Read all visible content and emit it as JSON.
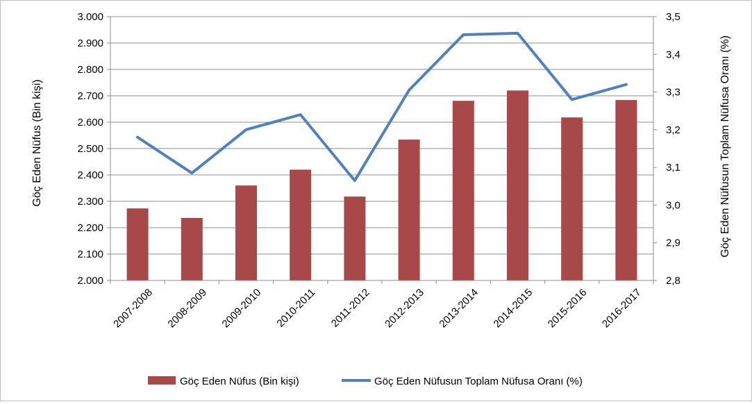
{
  "chart_data": {
    "type": "bar",
    "categories": [
      "2007-2008",
      "2008-2009",
      "2009-2010",
      "2010-2011",
      "2011-2012",
      "2012-2013",
      "2013-2014",
      "2014-2015",
      "2015-2016",
      "2016-2017"
    ],
    "series": [
      {
        "name": "Göç Eden Nüfus (Bin kişi)",
        "type": "bar",
        "axis": "left",
        "color": "#a84848",
        "values": [
          2273,
          2237,
          2360,
          2420,
          2318,
          2534,
          2681,
          2720,
          2618,
          2684
        ]
      },
      {
        "name": "Göç Eden Nüfusun Toplam Nüfusa  Oranı (%)",
        "type": "line",
        "axis": "right",
        "color": "#4f81bd",
        "values": [
          3.18,
          3.085,
          3.2,
          3.24,
          3.065,
          3.305,
          3.452,
          3.456,
          3.28,
          3.32
        ]
      }
    ],
    "y_left": {
      "label": "Göç Eden Nüfus (Bin kişi)",
      "ylim": [
        2000,
        3000
      ],
      "ticks": [
        2000,
        2100,
        2200,
        2300,
        2400,
        2500,
        2600,
        2700,
        2800,
        2900,
        3000
      ],
      "tick_labels": [
        "2.000",
        "2.100",
        "2.200",
        "2.300",
        "2.400",
        "2.500",
        "2.600",
        "2.700",
        "2.800",
        "2.900",
        "3.000"
      ]
    },
    "y_right": {
      "label": "Göç Eden Nüfusun Toplam Nüfusa  Oranı (%)",
      "ylim": [
        2.8,
        3.5
      ],
      "ticks": [
        2.8,
        2.9,
        3.0,
        3.1,
        3.2,
        3.3,
        3.4,
        3.5
      ],
      "tick_labels": [
        "2,8",
        "2,9",
        "3,0",
        "3,1",
        "3,2",
        "3,3",
        "3,4",
        "3,5"
      ]
    },
    "xlabel": "",
    "title": "",
    "grid": "horizontal",
    "legend_position": "bottom"
  }
}
